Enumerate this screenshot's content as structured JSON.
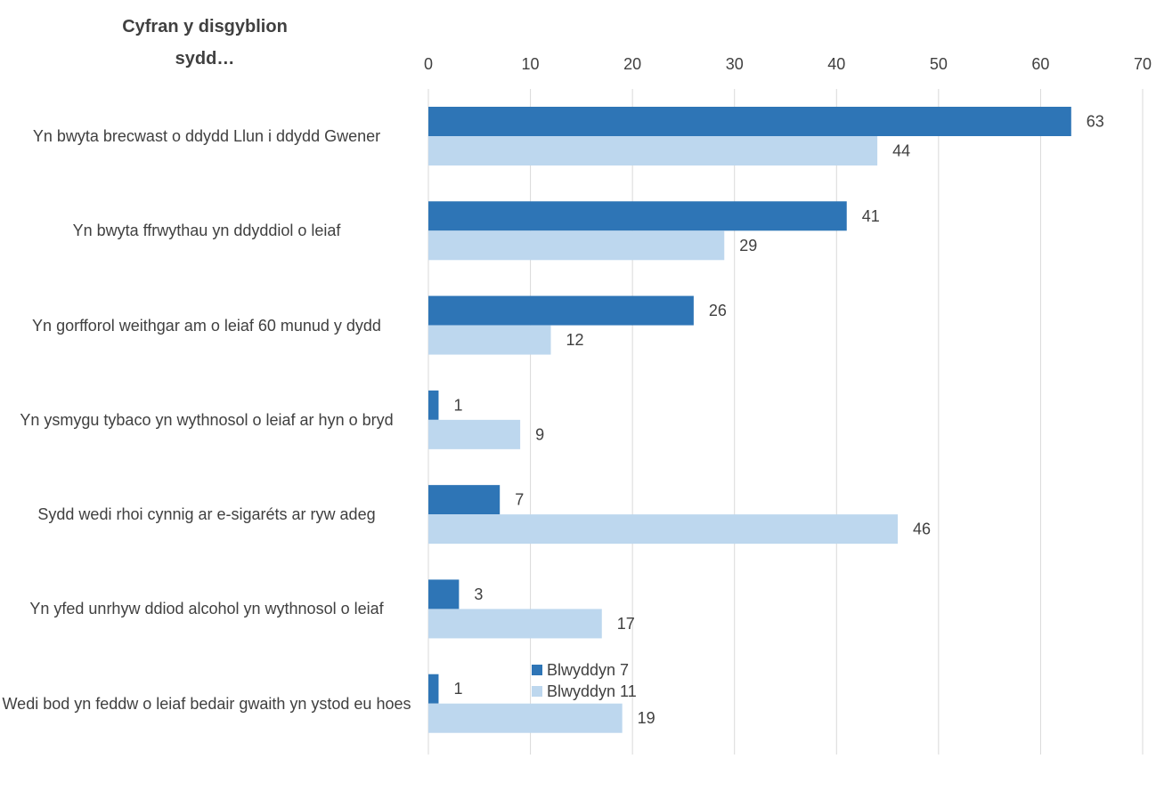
{
  "chart_data": {
    "type": "bar",
    "orientation": "horizontal",
    "title": "Cyfran y disgyblion sydd…",
    "xlabel": "",
    "ylabel": "",
    "xlim": [
      0,
      70
    ],
    "x_ticks": [
      "0",
      "10",
      "20",
      "30",
      "40",
      "50",
      "60",
      "70"
    ],
    "grid": true,
    "legend_position": "bottom",
    "categories": [
      "Yn bwyta brecwast o ddydd Llun i ddydd Gwener",
      "Yn bwyta ffrwythau yn ddyddiol o leiaf",
      "Yn gorfforol weithgar am o leiaf 60 munud y dydd",
      "Yn ysmygu tybaco yn wythnosol o leiaf ar hyn o bryd",
      "Sydd wedi rhoi cynnig ar e-sigaréts ar ryw adeg",
      "Yn yfed unrhyw ddiod alcohol yn wythnosol o leiaf",
      "Wedi bod yn feddw o leiaf bedair gwaith yn ystod eu hoes"
    ],
    "series": [
      {
        "name": "Blwyddyn 7",
        "color": "#2E75B6",
        "values": [
          63,
          41,
          26,
          1,
          7,
          3,
          1
        ]
      },
      {
        "name": "Blwyddyn 11",
        "color": "#BDD7EE",
        "values": [
          44,
          29,
          12,
          9,
          46,
          17,
          19
        ]
      }
    ]
  }
}
